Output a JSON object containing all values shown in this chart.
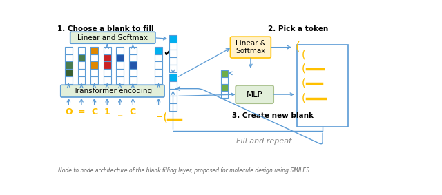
{
  "title_left": "1. Choose a blank to fill",
  "title_right": "2. Pick a token",
  "label_transformer": "Transformer encoding",
  "label_linear_softmax_left": "Linear and Softmax",
  "label_linear_softmax_right": "Linear &\nSoftmax",
  "label_mlp": "MLP",
  "label_step3": "3. Create new blank",
  "label_fill": "Fill and repeat",
  "tokens": [
    "O",
    "=",
    "C",
    "1",
    "_",
    "C"
  ],
  "arrow_color": "#5b9bd5",
  "green_color": "#70ad47",
  "cyan_color": "#00b0f0",
  "orange_color": "#ffc000",
  "dark_orange_color": "#e0a000",
  "bg_transformer": "#e2efda",
  "bg_linear_left": "#e2efda",
  "bg_linear_right": "#fff2cc",
  "bg_mlp": "#e2efda",
  "border_linear_right": "#ffc000",
  "border_mlp": "#a9c08c",
  "note_text": "Node to node architecture of the blank filling layer, proposed for molecule design using SMILES"
}
